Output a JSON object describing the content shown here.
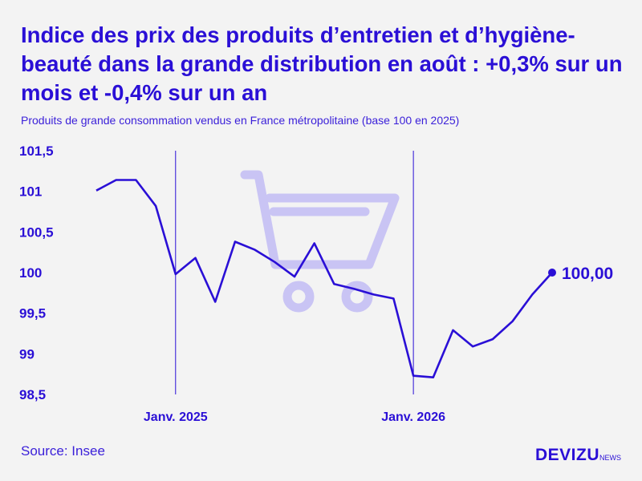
{
  "title": "Indice des prix des produits d’entretien et d’hygiène-beauté dans la grande distribution en août : +0,3% sur un mois et -0,4% sur un an",
  "subtitle": "Produits de grande consommation vendus en France métropolitaine (base 100 en 2025)",
  "source": "Source: Insee",
  "logo": {
    "main": "DEVIZU",
    "sub": "NEWS"
  },
  "colors": {
    "line": "#2a0fd6",
    "cart": "#c9c4f4",
    "background": "#f3f3f3"
  },
  "icons": {
    "background_illustration": "shopping-cart-icon"
  },
  "chart_data": {
    "type": "line",
    "title": "Indice des prix des produits d’entretien et d’hygiène-beauté dans la grande distribution en août : +0,3% sur un mois et -0,4% sur un an",
    "subtitle": "Produits de grande consommation vendus en France métropolitaine (base 100 en 2025)",
    "xlabel": "",
    "ylabel": "",
    "ylim": [
      98.5,
      101.5
    ],
    "grid": false,
    "y_ticks": [
      {
        "value": 101.5,
        "label": "101,5"
      },
      {
        "value": 101,
        "label": "101"
      },
      {
        "value": 100.5,
        "label": "100,5"
      },
      {
        "value": 100,
        "label": "100"
      },
      {
        "value": 99.5,
        "label": "99,5"
      },
      {
        "value": 99,
        "label": "99"
      },
      {
        "value": 98.5,
        "label": "98,5"
      }
    ],
    "x_ticks": [
      {
        "date": "2025-01",
        "label": "Janv. 2025"
      },
      {
        "date": "2026-01",
        "label": "Janv. 2026"
      }
    ],
    "series": [
      {
        "x": [
          "2024-09",
          "2024-10",
          "2024-11",
          "2024-12",
          "2025-01",
          "2025-02",
          "2025-03",
          "2025-04",
          "2025-05",
          "2025-06",
          "2025-07",
          "2025-08",
          "2025-09",
          "2025-10",
          "2025-11",
          "2025-12",
          "2026-01",
          "2026-02",
          "2026-03",
          "2026-04",
          "2026-05",
          "2026-06",
          "2026-07",
          "2026-08"
        ],
        "values": [
          101.01,
          101.14,
          101.14,
          100.82,
          99.98,
          100.18,
          99.64,
          100.38,
          100.28,
          100.13,
          99.95,
          100.36,
          99.86,
          99.8,
          99.73,
          99.68,
          98.73,
          98.71,
          99.29,
          99.09,
          99.18,
          99.4,
          99.73,
          100.0
        ]
      }
    ],
    "end_label": "100,00"
  }
}
